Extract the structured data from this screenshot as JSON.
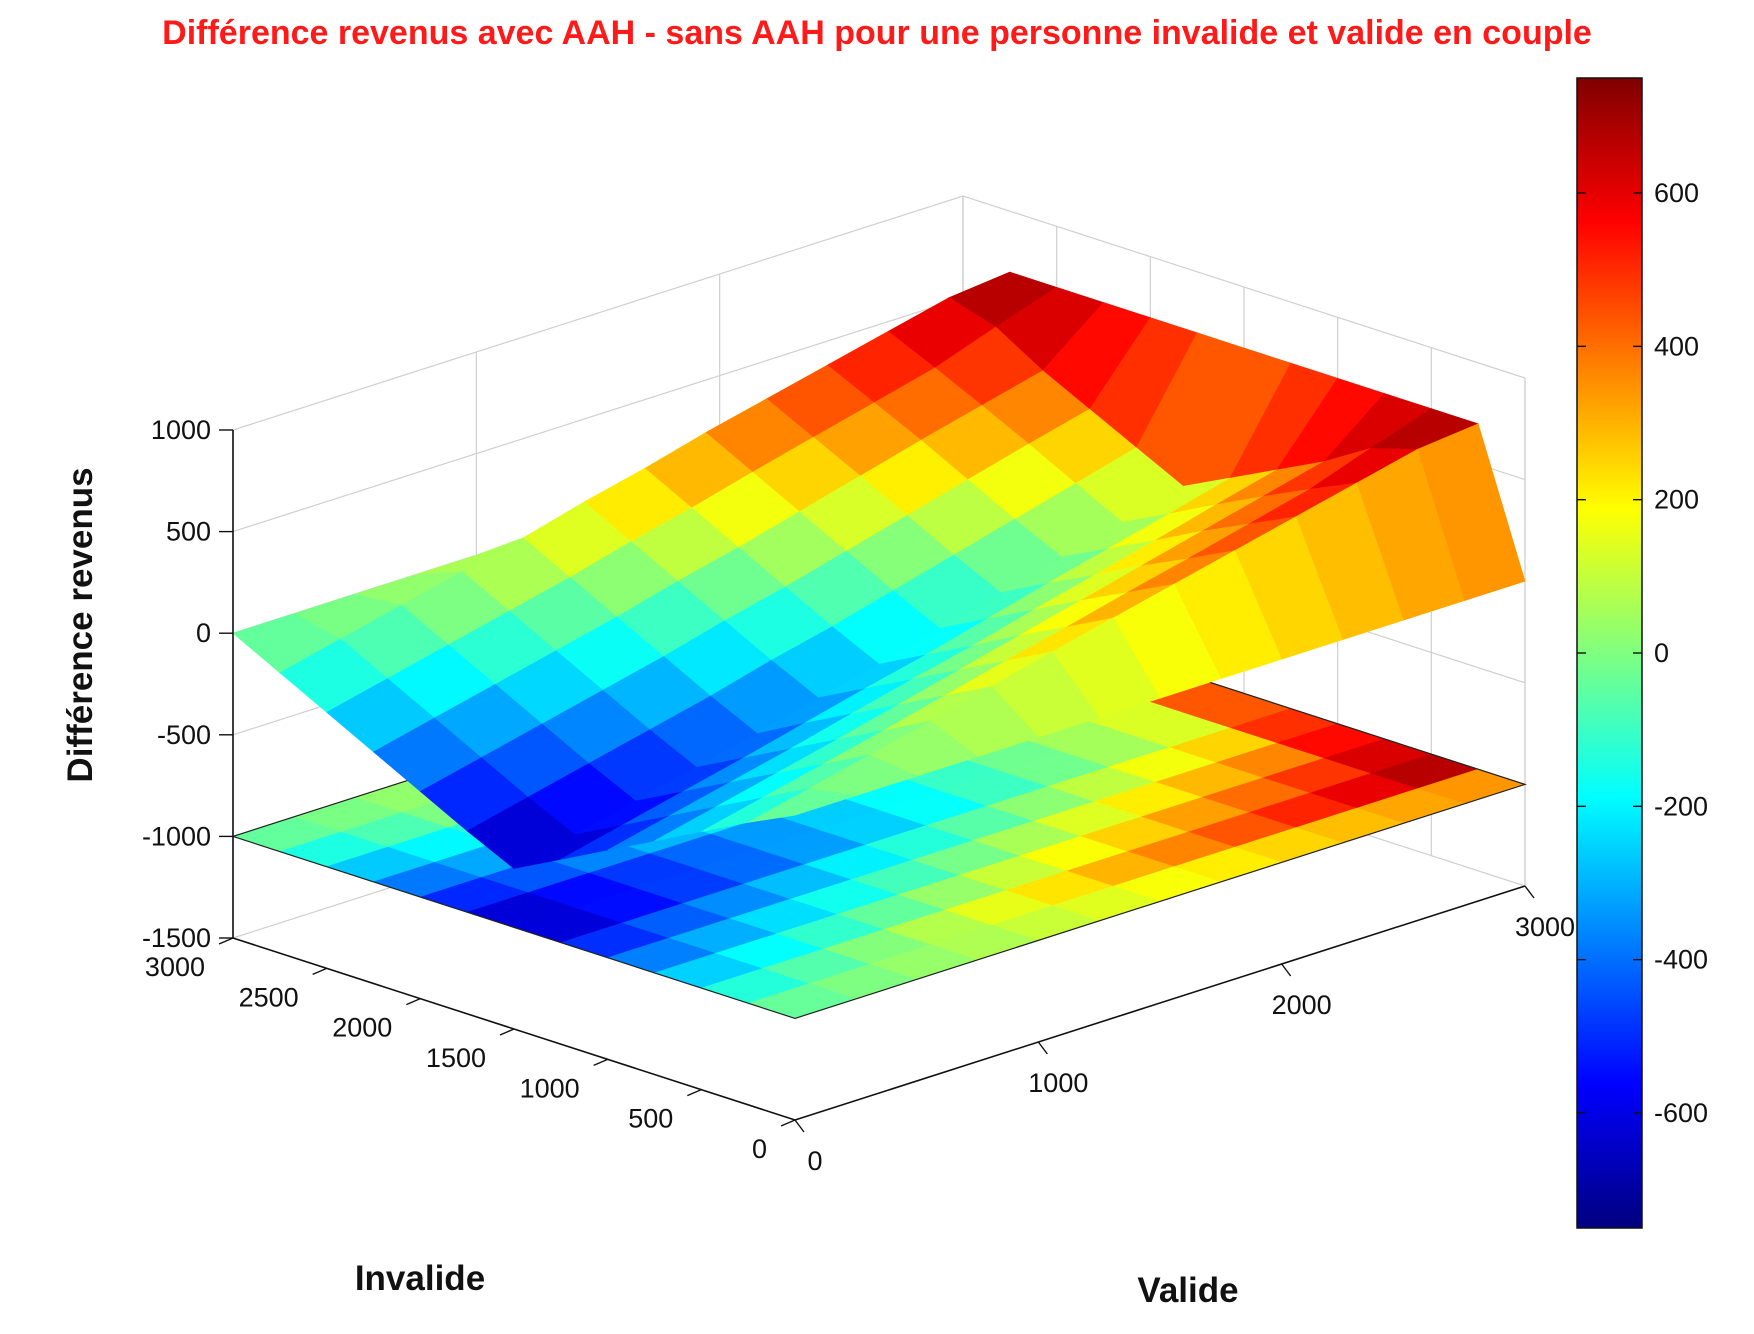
{
  "chart_data": {
    "type": "surface",
    "title": "Différence revenus avec AAH - sans AAH pour une personne invalide et valide en couple",
    "xlabel": "Valide",
    "ylabel": "Invalide",
    "zlabel": "Différence revenus",
    "xlim": [
      0,
      3000
    ],
    "ylim": [
      0,
      3000
    ],
    "zlim": [
      -1500,
      1000
    ],
    "x_ticks": [
      "0",
      "1000",
      "2000",
      "3000"
    ],
    "y_ticks": [
      "0",
      "500",
      "1000",
      "1500",
      "2000",
      "2500",
      "3000"
    ],
    "z_ticks": [
      "-1500",
      "-1000",
      "-500",
      "0",
      "500",
      "1000"
    ],
    "colorbar": {
      "range": [
        -750,
        750
      ],
      "ticks": [
        "-600",
        "-400",
        "-200",
        "0",
        "200",
        "400",
        "600"
      ],
      "colormap": "jet"
    },
    "contour_projection_z": -1000,
    "grid": true,
    "x": [
      0,
      250,
      500,
      750,
      1000,
      1250,
      1500,
      1750,
      2000,
      2250,
      2500,
      2750,
      3000
    ],
    "y": [
      0,
      250,
      500,
      750,
      1000,
      1250,
      1500,
      1750,
      2000,
      2250,
      2500,
      2750,
      3000
    ],
    "z_rows_by_y": [
      [
        0,
        0,
        0,
        0,
        0,
        0,
        0,
        0,
        0,
        0,
        0,
        0,
        0
      ],
      [
        -110,
        -40,
        30,
        100,
        175,
        250,
        320,
        390,
        460,
        530,
        600,
        670,
        700
      ],
      [
        -230,
        -160,
        -90,
        -20,
        55,
        130,
        200,
        275,
        345,
        420,
        495,
        600,
        700
      ],
      [
        -350,
        -280,
        -210,
        -140,
        -65,
        10,
        85,
        160,
        235,
        310,
        385,
        460,
        700
      ],
      [
        -470,
        -400,
        -330,
        -260,
        -185,
        -110,
        -40,
        40,
        115,
        190,
        270,
        345,
        700
      ],
      [
        -590,
        -520,
        -450,
        -380,
        -305,
        -230,
        -160,
        -80,
        0,
        75,
        150,
        230,
        700
      ],
      [
        -710,
        -640,
        -570,
        -500,
        -430,
        -350,
        -280,
        -200,
        -120,
        -40,
        35,
        115,
        700
      ],
      [
        -600,
        -530,
        -460,
        -390,
        -320,
        -240,
        -170,
        -90,
        -10,
        70,
        150,
        230,
        700
      ],
      [
        -480,
        -410,
        -340,
        -270,
        -200,
        -120,
        -50,
        30,
        110,
        190,
        270,
        345,
        700
      ],
      [
        -360,
        -290,
        -220,
        -150,
        -80,
        0,
        70,
        150,
        230,
        310,
        385,
        460,
        700
      ],
      [
        -240,
        -170,
        -100,
        -30,
        40,
        120,
        190,
        270,
        345,
        420,
        495,
        600,
        700
      ],
      [
        -120,
        -50,
        20,
        90,
        160,
        240,
        310,
        390,
        460,
        530,
        600,
        670,
        700
      ],
      [
        0,
        0,
        0,
        0,
        0,
        0,
        0,
        0,
        0,
        0,
        0,
        0,
        0
      ]
    ]
  }
}
